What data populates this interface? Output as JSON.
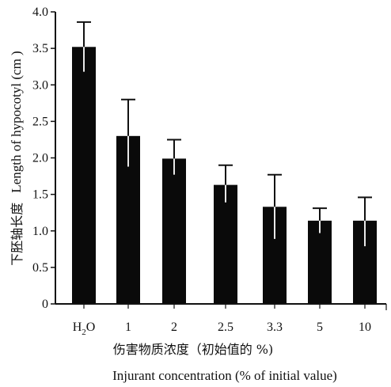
{
  "chart_data": {
    "type": "bar",
    "categories": [
      "H2O",
      "1",
      "2",
      "2.5",
      "3.3",
      "5",
      "10"
    ],
    "values": [
      3.52,
      2.3,
      1.99,
      1.63,
      1.33,
      1.14,
      1.14
    ],
    "error_upper": [
      3.86,
      2.8,
      2.25,
      1.9,
      1.77,
      1.31,
      1.46
    ],
    "error_lower": [
      3.18,
      1.88,
      1.77,
      1.39,
      0.89,
      0.97,
      0.79
    ],
    "yticks": [
      "0",
      "0.5",
      "1.0",
      "1.5",
      "2.0",
      "2.5",
      "3.0",
      "3.5",
      "4.0"
    ],
    "ylim": [
      0,
      4.0
    ],
    "ylabel_cn": "下胚轴长度",
    "ylabel_en": "Length of hypocotyl (cm )",
    "xlabel_cn": "伤害物质浓度（初始值的 %)",
    "xlabel_en": "Injurant concentration (% of initial value)",
    "grid": false,
    "bar_color": "#0a0a0a",
    "axis_color": "#111111"
  }
}
